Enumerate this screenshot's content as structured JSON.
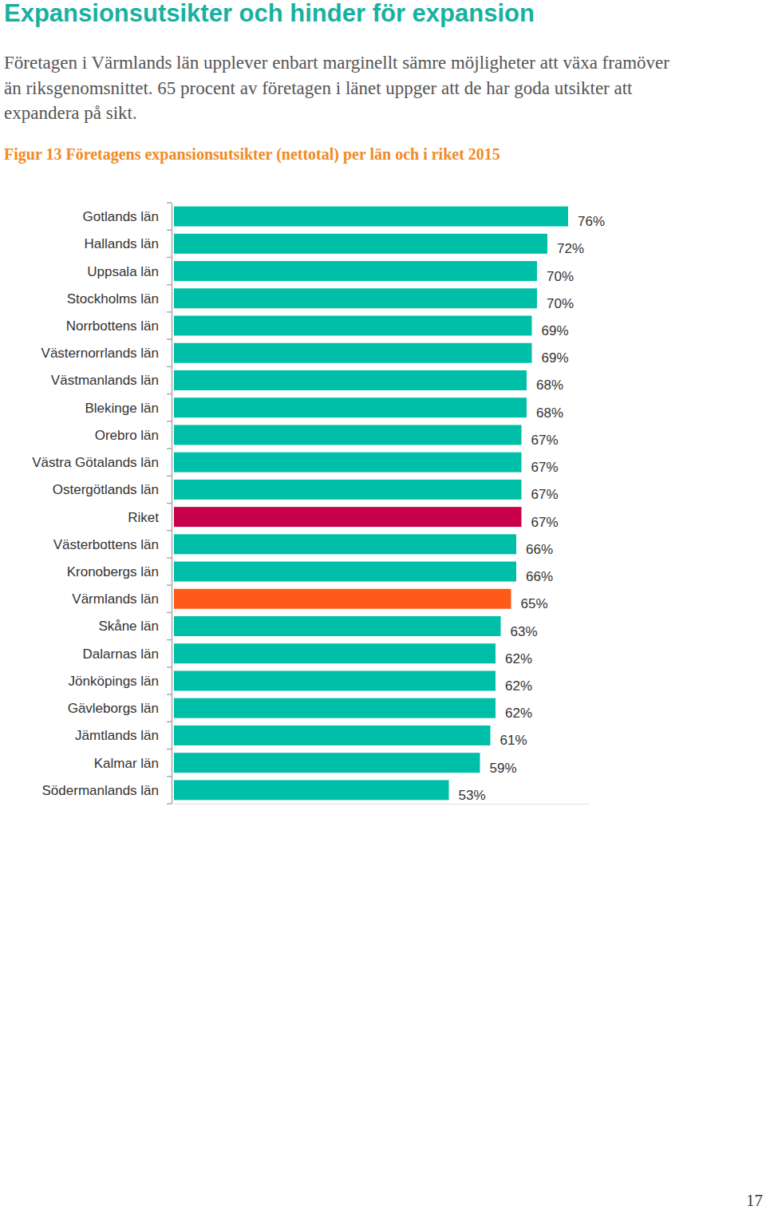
{
  "page": {
    "heading": "Expansionsutsikter och hinder för expansion",
    "paragraph": [
      "Företagen i Värmlands län upplever enbart marginellt sämre möjligheter att växa framöver",
      "än riksgenomsnittet. 65 procent av företagen i länet uppger att de har goda utsikter att",
      "expandera på sikt."
    ],
    "page_number": 17
  },
  "chart_data": {
    "type": "bar",
    "orientation": "horizontal",
    "title": "Figur 13 Företagens expansionsutsikter (nettotal) per län och i riket 2015",
    "categories": [
      "Gotlands län",
      "Hallands län",
      "Uppsala län",
      "Stockholms län",
      "Norrbottens län",
      "Västernorrlands län",
      "Västmanlands län",
      "Blekinge län",
      "Orebro län",
      "Västra Götalands län",
      "Ostergötlands län",
      "Riket",
      "Västerbottens län",
      "Kronobergs län",
      "Värmlands län",
      "Skåne län",
      "Dalarnas län",
      "Jönköpings län",
      "Gävleborgs län",
      "Jämtlands län",
      "Kalmar län",
      "Södermanlands län"
    ],
    "values": [
      76,
      72,
      70,
      70,
      69,
      69,
      68,
      68,
      67,
      67,
      67,
      67,
      66,
      66,
      65,
      63,
      62,
      62,
      62,
      61,
      59,
      53
    ],
    "value_labels": [
      "76%",
      "72%",
      "70%",
      "70%",
      "69%",
      "69%",
      "68%",
      "68%",
      "67%",
      "67%",
      "67%",
      "67%",
      "66%",
      "66%",
      "65%",
      "63%",
      "62%",
      "62%",
      "62%",
      "61%",
      "59%",
      "53%"
    ],
    "colors": [
      "#00bfa8",
      "#00bfa8",
      "#00bfa8",
      "#00bfa8",
      "#00bfa8",
      "#00bfa8",
      "#00bfa8",
      "#00bfa8",
      "#00bfa8",
      "#00bfa8",
      "#00bfa8",
      "#c8004a",
      "#00bfa8",
      "#00bfa8",
      "#ff5a1a",
      "#00bfa8",
      "#00bfa8",
      "#00bfa8",
      "#00bfa8",
      "#00bfa8",
      "#00bfa8",
      "#00bfa8"
    ],
    "xlim": [
      0,
      80
    ],
    "data_labels": true,
    "tick_labels": "y",
    "grid": false
  }
}
